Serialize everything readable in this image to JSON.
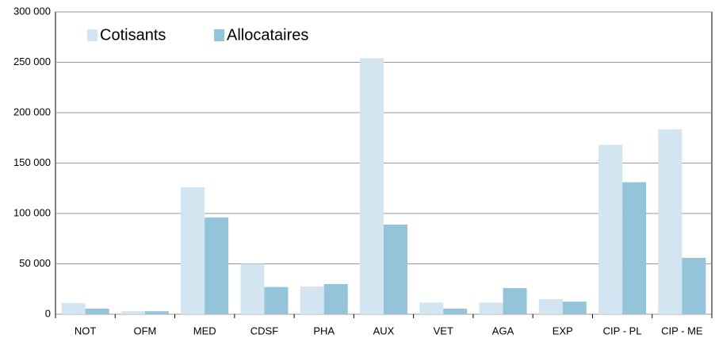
{
  "chart_data": {
    "type": "bar",
    "categories": [
      "NOT",
      "OFM",
      "MED",
      "CDSF",
      "PHA",
      "AUX",
      "VET",
      "AGA",
      "EXP",
      "CIP - PL",
      "CIP - ME"
    ],
    "series": [
      {
        "name": "Cotisants",
        "color": "#d2e5f1",
        "values": [
          11000,
          3000,
          126000,
          50000,
          27500,
          254000,
          11500,
          11500,
          15000,
          168000,
          183500
        ]
      },
      {
        "name": "Allocataires",
        "color": "#93c4da",
        "values": [
          5500,
          3000,
          96000,
          27000,
          30000,
          89000,
          5500,
          26000,
          12500,
          131000,
          56000
        ]
      }
    ],
    "ylim": [
      0,
      300000
    ],
    "yticks": [
      {
        "value": 0,
        "label": "0"
      },
      {
        "value": 50000,
        "label": "50 000"
      },
      {
        "value": 100000,
        "label": "100 000"
      },
      {
        "value": 150000,
        "label": "150 000"
      },
      {
        "value": 200000,
        "label": "200 000"
      },
      {
        "value": 250000,
        "label": "250 000"
      },
      {
        "value": 300000,
        "label": "300 000"
      }
    ],
    "grid": true,
    "legend": "upper-left"
  }
}
